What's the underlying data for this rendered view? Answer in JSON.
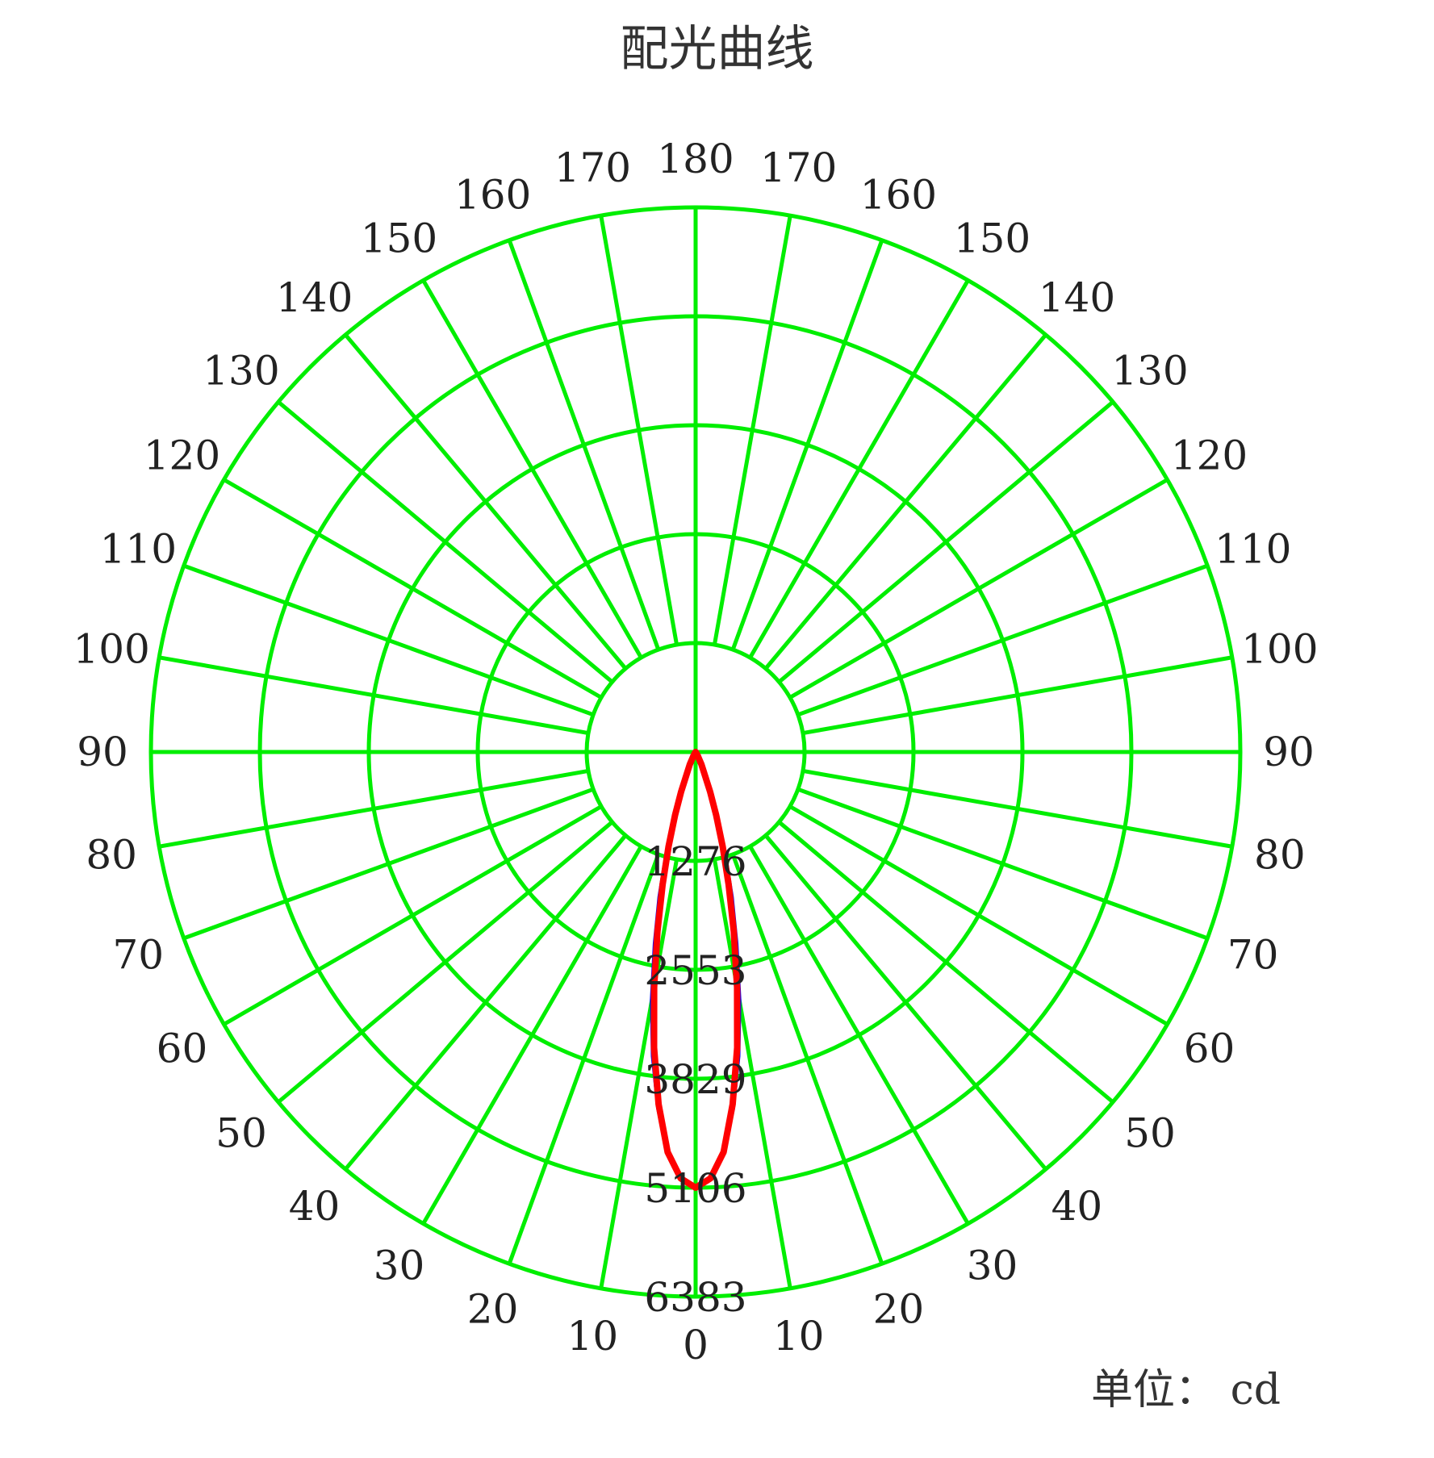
{
  "chart_data": {
    "type": "polar",
    "title": "配光曲线",
    "unit_label": "单位： cd",
    "radial_ticks": [
      "1276",
      "2553",
      "3829",
      "5106",
      "6383"
    ],
    "radial_max": 6383,
    "angle_step": 10,
    "angle_labels_right": [
      "0",
      "10",
      "20",
      "30",
      "40",
      "50",
      "60",
      "70",
      "80",
      "90",
      "100",
      "110",
      "120",
      "130",
      "140",
      "150",
      "160",
      "170",
      "180"
    ],
    "angle_labels_left": [
      "10",
      "20",
      "30",
      "40",
      "50",
      "60",
      "70",
      "80",
      "90",
      "100",
      "110",
      "120",
      "130",
      "140",
      "150",
      "160",
      "170"
    ],
    "grid_color": "#00ee00",
    "series": [
      {
        "color": "#0000ff",
        "angles": [
          0,
          2,
          4,
          6,
          8,
          10,
          12,
          14,
          16,
          18,
          20,
          25,
          30,
          40,
          60,
          90
        ],
        "values": [
          5106,
          5000,
          4700,
          4200,
          3600,
          2950,
          2300,
          1750,
          1250,
          850,
          550,
          180,
          60,
          10,
          0,
          0
        ]
      },
      {
        "color": "#ff0000",
        "angles": [
          0,
          2,
          4,
          6,
          8,
          10,
          12,
          14,
          16,
          18,
          20,
          25,
          30,
          40,
          60,
          90
        ],
        "values": [
          5106,
          5000,
          4700,
          4150,
          3500,
          2800,
          2150,
          1600,
          1150,
          780,
          500,
          160,
          50,
          8,
          0,
          0
        ]
      }
    ]
  }
}
